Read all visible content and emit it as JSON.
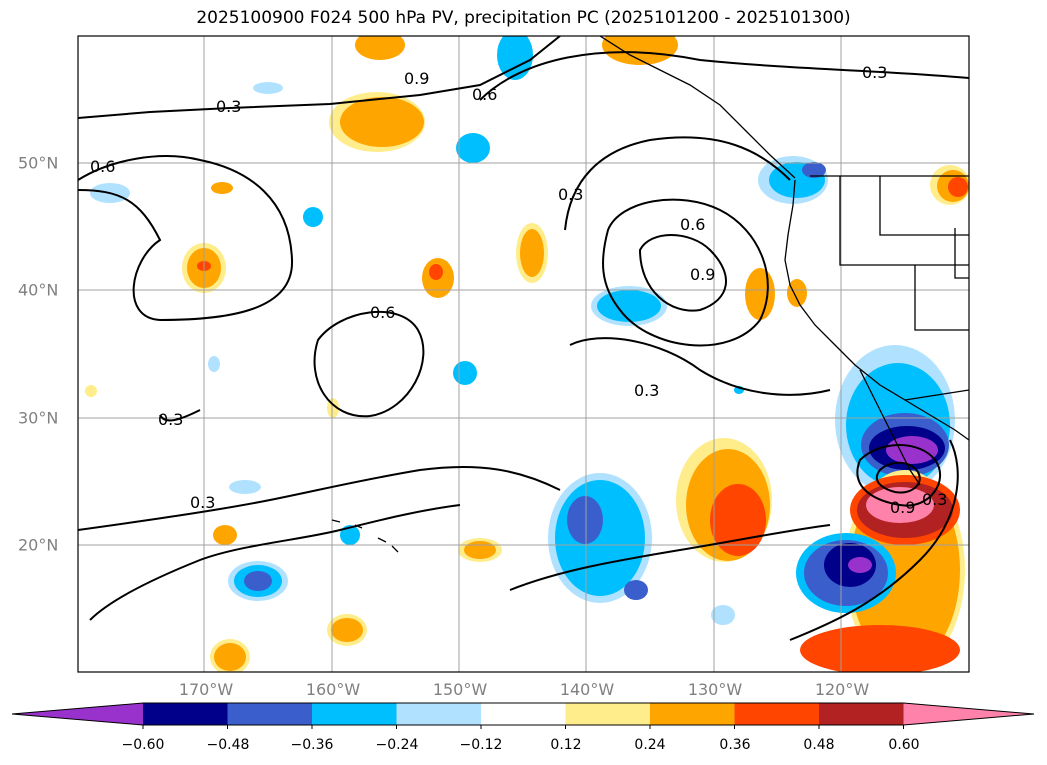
{
  "title": "2025100900 F024 500 hPa PV, precipitation PC (2025101200 - 2025101300)",
  "longitude_labels": [
    "170°W",
    "160°W",
    "150°W",
    "140°W",
    "130°W",
    "120°W"
  ],
  "latitude_labels": [
    "50°N",
    "40°N",
    "30°N",
    "20°N"
  ],
  "colorbar": {
    "colors": [
      "#9932cc",
      "#00008b",
      "#3a5fcd",
      "#00bfff",
      "#b0e2ff",
      "#ffffff",
      "#ffec8b",
      "#ffa500",
      "#ff4500",
      "#b22222",
      "#ff82ab"
    ],
    "tick_labels": [
      "−0.60",
      "−0.48",
      "−0.36",
      "−0.24",
      "−0.12",
      "0.12",
      "0.24",
      "0.36",
      "0.48",
      "0.60"
    ]
  },
  "pv_contour_labels": [
    "0.3",
    "0.6",
    "0.9"
  ],
  "precip_colors": {
    "neg_strong": "#00008b",
    "neg_mid": "#3a5fcd",
    "neg_light": "#00bfff",
    "neg_faint": "#b0e2ff",
    "pos_faint": "#ffec8b",
    "pos_light": "#ffa500",
    "pos_mid": "#ff4500",
    "pos_strong": "#b22222",
    "pos_max": "#ff82ab",
    "neg_max": "#9932cc"
  }
}
